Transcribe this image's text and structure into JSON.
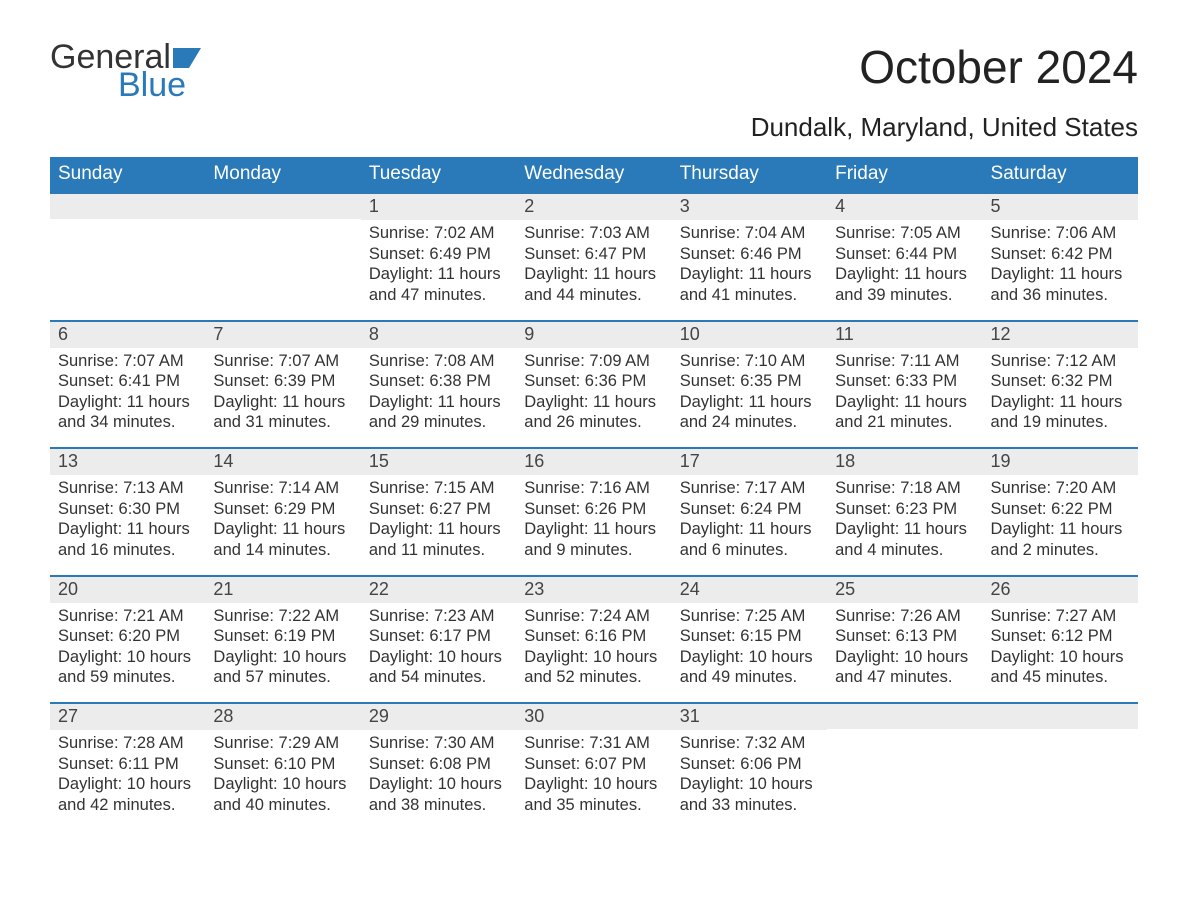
{
  "logo": {
    "word1": "General",
    "word2": "Blue",
    "flag_color": "#2a7ab9",
    "text_color": "#333333"
  },
  "header": {
    "month_title": "October 2024",
    "location": "Dundalk, Maryland, United States",
    "title_color": "#222222",
    "title_fontsize": 46,
    "location_fontsize": 26
  },
  "calendar": {
    "weekday_bg": "#2a7ab9",
    "weekday_text_color": "#ffffff",
    "week_border_color": "#2a7ab9",
    "daynum_bg": "#ececec",
    "body_text_color": "#333333",
    "weekdays": [
      "Sunday",
      "Monday",
      "Tuesday",
      "Wednesday",
      "Thursday",
      "Friday",
      "Saturday"
    ],
    "weeks": [
      [
        {
          "num": "",
          "sunrise": "",
          "sunset": "",
          "daylight1": "",
          "daylight2": ""
        },
        {
          "num": "",
          "sunrise": "",
          "sunset": "",
          "daylight1": "",
          "daylight2": ""
        },
        {
          "num": "1",
          "sunrise": "Sunrise: 7:02 AM",
          "sunset": "Sunset: 6:49 PM",
          "daylight1": "Daylight: 11 hours",
          "daylight2": "and 47 minutes."
        },
        {
          "num": "2",
          "sunrise": "Sunrise: 7:03 AM",
          "sunset": "Sunset: 6:47 PM",
          "daylight1": "Daylight: 11 hours",
          "daylight2": "and 44 minutes."
        },
        {
          "num": "3",
          "sunrise": "Sunrise: 7:04 AM",
          "sunset": "Sunset: 6:46 PM",
          "daylight1": "Daylight: 11 hours",
          "daylight2": "and 41 minutes."
        },
        {
          "num": "4",
          "sunrise": "Sunrise: 7:05 AM",
          "sunset": "Sunset: 6:44 PM",
          "daylight1": "Daylight: 11 hours",
          "daylight2": "and 39 minutes."
        },
        {
          "num": "5",
          "sunrise": "Sunrise: 7:06 AM",
          "sunset": "Sunset: 6:42 PM",
          "daylight1": "Daylight: 11 hours",
          "daylight2": "and 36 minutes."
        }
      ],
      [
        {
          "num": "6",
          "sunrise": "Sunrise: 7:07 AM",
          "sunset": "Sunset: 6:41 PM",
          "daylight1": "Daylight: 11 hours",
          "daylight2": "and 34 minutes."
        },
        {
          "num": "7",
          "sunrise": "Sunrise: 7:07 AM",
          "sunset": "Sunset: 6:39 PM",
          "daylight1": "Daylight: 11 hours",
          "daylight2": "and 31 minutes."
        },
        {
          "num": "8",
          "sunrise": "Sunrise: 7:08 AM",
          "sunset": "Sunset: 6:38 PM",
          "daylight1": "Daylight: 11 hours",
          "daylight2": "and 29 minutes."
        },
        {
          "num": "9",
          "sunrise": "Sunrise: 7:09 AM",
          "sunset": "Sunset: 6:36 PM",
          "daylight1": "Daylight: 11 hours",
          "daylight2": "and 26 minutes."
        },
        {
          "num": "10",
          "sunrise": "Sunrise: 7:10 AM",
          "sunset": "Sunset: 6:35 PM",
          "daylight1": "Daylight: 11 hours",
          "daylight2": "and 24 minutes."
        },
        {
          "num": "11",
          "sunrise": "Sunrise: 7:11 AM",
          "sunset": "Sunset: 6:33 PM",
          "daylight1": "Daylight: 11 hours",
          "daylight2": "and 21 minutes."
        },
        {
          "num": "12",
          "sunrise": "Sunrise: 7:12 AM",
          "sunset": "Sunset: 6:32 PM",
          "daylight1": "Daylight: 11 hours",
          "daylight2": "and 19 minutes."
        }
      ],
      [
        {
          "num": "13",
          "sunrise": "Sunrise: 7:13 AM",
          "sunset": "Sunset: 6:30 PM",
          "daylight1": "Daylight: 11 hours",
          "daylight2": "and 16 minutes."
        },
        {
          "num": "14",
          "sunrise": "Sunrise: 7:14 AM",
          "sunset": "Sunset: 6:29 PM",
          "daylight1": "Daylight: 11 hours",
          "daylight2": "and 14 minutes."
        },
        {
          "num": "15",
          "sunrise": "Sunrise: 7:15 AM",
          "sunset": "Sunset: 6:27 PM",
          "daylight1": "Daylight: 11 hours",
          "daylight2": "and 11 minutes."
        },
        {
          "num": "16",
          "sunrise": "Sunrise: 7:16 AM",
          "sunset": "Sunset: 6:26 PM",
          "daylight1": "Daylight: 11 hours",
          "daylight2": "and 9 minutes."
        },
        {
          "num": "17",
          "sunrise": "Sunrise: 7:17 AM",
          "sunset": "Sunset: 6:24 PM",
          "daylight1": "Daylight: 11 hours",
          "daylight2": "and 6 minutes."
        },
        {
          "num": "18",
          "sunrise": "Sunrise: 7:18 AM",
          "sunset": "Sunset: 6:23 PM",
          "daylight1": "Daylight: 11 hours",
          "daylight2": "and 4 minutes."
        },
        {
          "num": "19",
          "sunrise": "Sunrise: 7:20 AM",
          "sunset": "Sunset: 6:22 PM",
          "daylight1": "Daylight: 11 hours",
          "daylight2": "and 2 minutes."
        }
      ],
      [
        {
          "num": "20",
          "sunrise": "Sunrise: 7:21 AM",
          "sunset": "Sunset: 6:20 PM",
          "daylight1": "Daylight: 10 hours",
          "daylight2": "and 59 minutes."
        },
        {
          "num": "21",
          "sunrise": "Sunrise: 7:22 AM",
          "sunset": "Sunset: 6:19 PM",
          "daylight1": "Daylight: 10 hours",
          "daylight2": "and 57 minutes."
        },
        {
          "num": "22",
          "sunrise": "Sunrise: 7:23 AM",
          "sunset": "Sunset: 6:17 PM",
          "daylight1": "Daylight: 10 hours",
          "daylight2": "and 54 minutes."
        },
        {
          "num": "23",
          "sunrise": "Sunrise: 7:24 AM",
          "sunset": "Sunset: 6:16 PM",
          "daylight1": "Daylight: 10 hours",
          "daylight2": "and 52 minutes."
        },
        {
          "num": "24",
          "sunrise": "Sunrise: 7:25 AM",
          "sunset": "Sunset: 6:15 PM",
          "daylight1": "Daylight: 10 hours",
          "daylight2": "and 49 minutes."
        },
        {
          "num": "25",
          "sunrise": "Sunrise: 7:26 AM",
          "sunset": "Sunset: 6:13 PM",
          "daylight1": "Daylight: 10 hours",
          "daylight2": "and 47 minutes."
        },
        {
          "num": "26",
          "sunrise": "Sunrise: 7:27 AM",
          "sunset": "Sunset: 6:12 PM",
          "daylight1": "Daylight: 10 hours",
          "daylight2": "and 45 minutes."
        }
      ],
      [
        {
          "num": "27",
          "sunrise": "Sunrise: 7:28 AM",
          "sunset": "Sunset: 6:11 PM",
          "daylight1": "Daylight: 10 hours",
          "daylight2": "and 42 minutes."
        },
        {
          "num": "28",
          "sunrise": "Sunrise: 7:29 AM",
          "sunset": "Sunset: 6:10 PM",
          "daylight1": "Daylight: 10 hours",
          "daylight2": "and 40 minutes."
        },
        {
          "num": "29",
          "sunrise": "Sunrise: 7:30 AM",
          "sunset": "Sunset: 6:08 PM",
          "daylight1": "Daylight: 10 hours",
          "daylight2": "and 38 minutes."
        },
        {
          "num": "30",
          "sunrise": "Sunrise: 7:31 AM",
          "sunset": "Sunset: 6:07 PM",
          "daylight1": "Daylight: 10 hours",
          "daylight2": "and 35 minutes."
        },
        {
          "num": "31",
          "sunrise": "Sunrise: 7:32 AM",
          "sunset": "Sunset: 6:06 PM",
          "daylight1": "Daylight: 10 hours",
          "daylight2": "and 33 minutes."
        },
        {
          "num": "",
          "sunrise": "",
          "sunset": "",
          "daylight1": "",
          "daylight2": ""
        },
        {
          "num": "",
          "sunrise": "",
          "sunset": "",
          "daylight1": "",
          "daylight2": ""
        }
      ]
    ]
  }
}
